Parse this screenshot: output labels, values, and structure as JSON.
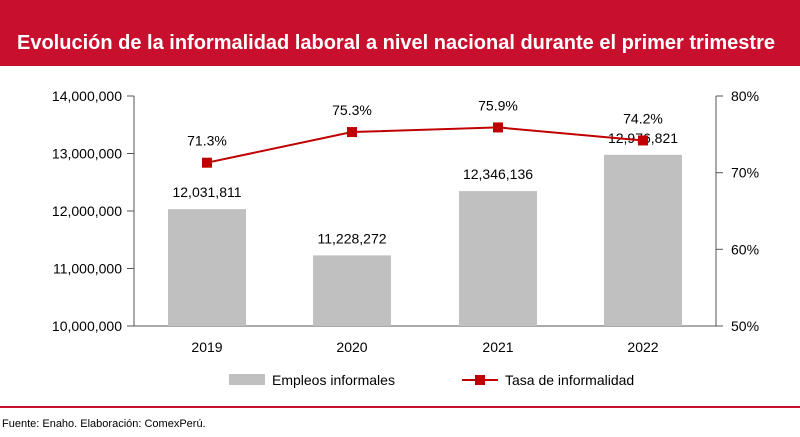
{
  "title": "Evolución de la informalidad laboral a nivel nacional durante el primer trimestre",
  "source": "Fuente: Enaho. Elaboración: ComexPerú.",
  "colors": {
    "brand": "#c8102e",
    "bar": "#c0c0c0",
    "line": "#c00000"
  },
  "chart_data": {
    "type": "bar",
    "categories": [
      "2019",
      "2020",
      "2021",
      "2022"
    ],
    "series": [
      {
        "name": "Empleos informales",
        "type": "bar",
        "axis": "left",
        "values": [
          12031811,
          11228272,
          12346136,
          12976821
        ],
        "labels": [
          "12,031,811",
          "11,228,272",
          "12,346,136",
          "12,976,821"
        ]
      },
      {
        "name": "Tasa de informalidad",
        "type": "line",
        "axis": "right",
        "values": [
          71.3,
          75.3,
          75.9,
          74.2
        ],
        "labels": [
          "71.3%",
          "75.3%",
          "75.9%",
          "74.2%"
        ]
      }
    ],
    "y_left": {
      "ylim": [
        10000000,
        14000000
      ],
      "ticks": [
        "10,000,000",
        "11,000,000",
        "12,000,000",
        "13,000,000",
        "14,000,000"
      ]
    },
    "y_right": {
      "ylim": [
        50,
        80
      ],
      "ticks": [
        "50%",
        "60%",
        "70%",
        "80%"
      ]
    },
    "grid": false,
    "legend_position": "bottom"
  }
}
